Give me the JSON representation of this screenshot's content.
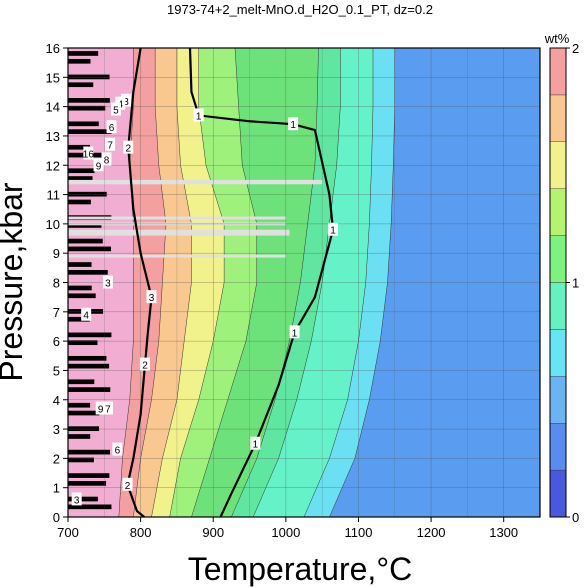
{
  "chart_data": {
    "type": "heatmap",
    "title": "1973-74+2_melt-MnO.d_H2O_0.1_PT, dz=0.2",
    "xlabel": "Temperature,°C",
    "ylabel": "Pressure,kbar",
    "xlim": [
      700,
      1350
    ],
    "ylim": [
      0,
      16
    ],
    "x_ticks": [
      700,
      800,
      900,
      1000,
      1100,
      1200,
      1300
    ],
    "y_ticks": [
      0,
      1,
      2,
      3,
      4,
      5,
      6,
      7,
      8,
      9,
      10,
      11,
      12,
      13,
      14,
      15,
      16
    ],
    "grid": true,
    "colorbar": {
      "label": "wt%",
      "range": [
        0,
        2
      ],
      "ticks": [
        0,
        1,
        2
      ],
      "levels": [
        0,
        0.2,
        0.4,
        0.6,
        0.8,
        1.0,
        1.2,
        1.4,
        1.6,
        1.8,
        2.0
      ],
      "colors": [
        "#3333cc",
        "#4a58e0",
        "#5a8cf0",
        "#6ab4f4",
        "#66e6f2",
        "#66f2c0",
        "#7ef27e",
        "#b4f270",
        "#f2f28c",
        "#f8c890",
        "#f4a0a0",
        "#f2aed2"
      ]
    },
    "contour_boundaries": [
      {
        "level": 0.2,
        "points": [
          [
            1045,
            16
          ],
          [
            1043,
            14
          ],
          [
            1040,
            12
          ],
          [
            1030,
            10
          ],
          [
            1020,
            8
          ],
          [
            1005,
            6
          ],
          [
            985,
            4
          ],
          [
            960,
            2
          ],
          [
            935,
            0
          ]
        ]
      },
      {
        "level": 0.6,
        "points": [
          [
            1075,
            16
          ],
          [
            1075,
            14
          ],
          [
            1070,
            12
          ],
          [
            1060,
            10
          ],
          [
            1050,
            8
          ],
          [
            1035,
            6
          ],
          [
            1015,
            4
          ],
          [
            990,
            2
          ],
          [
            955,
            0
          ]
        ]
      },
      {
        "level": 1.0,
        "points": [
          [
            1040,
            16
          ],
          [
            1040,
            14
          ],
          [
            1035,
            12
          ],
          [
            1025,
            10
          ],
          [
            1015,
            8
          ],
          [
            1000,
            6
          ],
          [
            980,
            4
          ],
          [
            955,
            2
          ],
          [
            930,
            0
          ]
        ]
      },
      {
        "level": 0.8,
        "points": [
          [
            1150,
            16
          ],
          [
            1150,
            14
          ],
          [
            1148,
            12
          ],
          [
            1145,
            10
          ],
          [
            1140,
            8
          ],
          [
            1130,
            6
          ],
          [
            1115,
            4
          ],
          [
            1095,
            2
          ],
          [
            1060,
            0
          ]
        ]
      },
      {
        "level": 0.2,
        "points": [
          [
            1190,
            16
          ],
          [
            1190,
            8
          ],
          [
            1190,
            0
          ]
        ]
      }
    ],
    "contour_labels": [
      {
        "text": "1",
        "x": 880,
        "y": 13.7
      },
      {
        "text": "1",
        "x": 1010,
        "y": 13.4
      },
      {
        "text": "1",
        "x": 1065,
        "y": 9.8
      },
      {
        "text": "1",
        "x": 1012,
        "y": 6.3
      },
      {
        "text": "1",
        "x": 958,
        "y": 2.5
      },
      {
        "text": "2",
        "x": 783,
        "y": 12.6
      },
      {
        "text": "2",
        "x": 806,
        "y": 5.2
      },
      {
        "text": "2",
        "x": 782,
        "y": 1.1
      },
      {
        "text": "3",
        "x": 815,
        "y": 7.5
      },
      {
        "text": "3",
        "x": 780,
        "y": 14.2
      },
      {
        "text": "4",
        "x": 772,
        "y": 14.1
      },
      {
        "text": "5",
        "x": 766,
        "y": 13.9
      },
      {
        "text": "6",
        "x": 760,
        "y": 13.3
      },
      {
        "text": "7",
        "x": 758,
        "y": 12.7
      },
      {
        "text": "8",
        "x": 753,
        "y": 12.2
      },
      {
        "text": "9",
        "x": 742,
        "y": 12.0
      },
      {
        "text": "16",
        "x": 728,
        "y": 12.4
      },
      {
        "text": "3",
        "x": 755,
        "y": 8.0
      },
      {
        "text": "4",
        "x": 725,
        "y": 6.9
      },
      {
        "text": "3",
        "x": 712,
        "y": 0.6
      },
      {
        "text": "6",
        "x": 768,
        "y": 2.3
      },
      {
        "text": "9",
        "x": 745,
        "y": 3.7
      },
      {
        "text": "7",
        "x": 755,
        "y": 3.7
      }
    ],
    "white_bands_kbar": [
      {
        "from": 11.35,
        "to": 11.5,
        "xmax": 1050
      },
      {
        "from": 10.15,
        "to": 10.25,
        "xmax": 1000
      },
      {
        "from": 9.95,
        "to": 10.05,
        "xmax": 1000
      },
      {
        "from": 9.6,
        "to": 9.8,
        "xmax": 1005
      },
      {
        "from": 8.85,
        "to": 8.95,
        "xmax": 1000
      }
    ]
  }
}
